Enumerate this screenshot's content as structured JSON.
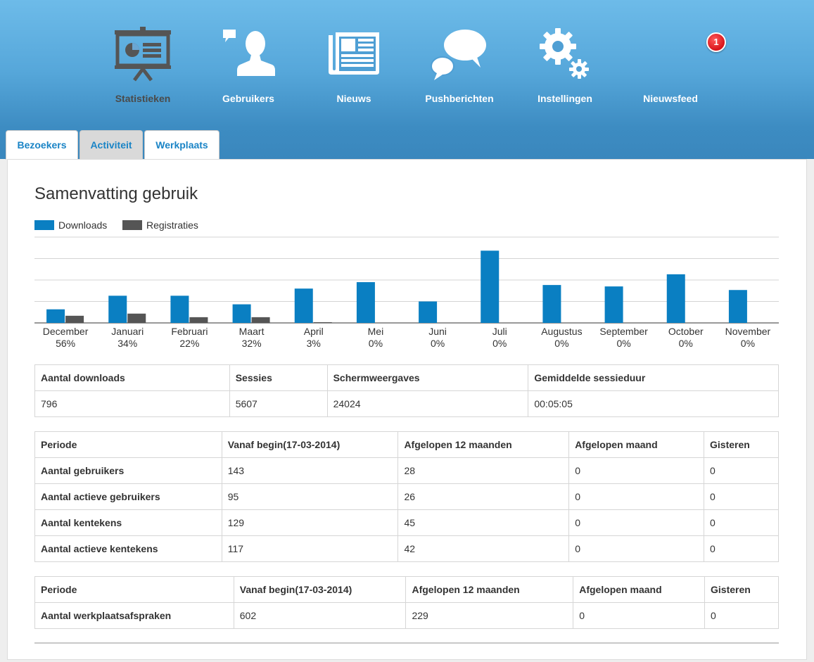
{
  "nav": {
    "items": [
      {
        "label": "Statistieken",
        "icon": "presentation-chart-icon"
      },
      {
        "label": "Gebruikers",
        "icon": "user-icon"
      },
      {
        "label": "Nieuws",
        "icon": "newspaper-icon"
      },
      {
        "label": "Pushberichten",
        "icon": "chat-bubbles-icon"
      },
      {
        "label": "Instellingen",
        "icon": "gear-icon"
      },
      {
        "label": "Nieuwsfeed",
        "icon": "feed-icon"
      }
    ],
    "active": "Statistieken",
    "badge": "1"
  },
  "tabs": [
    {
      "label": "Bezoekers"
    },
    {
      "label": "Activiteit"
    },
    {
      "label": "Werkplaats"
    }
  ],
  "active_tab": "Activiteit",
  "page": {
    "title": "Samenvatting gebruik"
  },
  "colors": {
    "downloads": "#0a7fc2",
    "registraties": "#555555",
    "nav_active_text": "#4a4a4a",
    "tab_text": "#1a84c6"
  },
  "chart_data": {
    "type": "bar",
    "title": "Samenvatting gebruik",
    "categories": [
      "December",
      "Januari",
      "Februari",
      "Maart",
      "April",
      "Mei",
      "Juni",
      "Juli",
      "Augustus",
      "September",
      "October",
      "November"
    ],
    "category_percent": [
      "56%",
      "34%",
      "22%",
      "32%",
      "3%",
      "0%",
      "0%",
      "0%",
      "0%",
      "0%",
      "0%",
      "0%"
    ],
    "series": [
      {
        "name": "Downloads",
        "values": [
          19,
          38,
          38,
          26,
          48,
          57,
          30,
          101,
          53,
          51,
          68,
          46
        ]
      },
      {
        "name": "Registraties",
        "values": [
          10,
          13,
          8,
          8,
          1,
          0,
          0,
          0,
          0,
          0,
          0,
          0
        ]
      }
    ],
    "ylim": [
      0,
      120
    ],
    "grid": true,
    "legend": "top-left"
  },
  "summary_table": {
    "headers": [
      "Aantal downloads",
      "Sessies",
      "Schermweergaves",
      "Gemiddelde sessieduur"
    ],
    "values": [
      "796",
      "5607",
      "24024",
      "00:05:05"
    ]
  },
  "users_table": {
    "headers": [
      "Periode",
      "Vanaf begin(17-03-2014)",
      "Afgelopen 12 maanden",
      "Afgelopen maand",
      "Gisteren"
    ],
    "rows": [
      [
        "Aantal gebruikers",
        "143",
        "28",
        "0",
        "0"
      ],
      [
        "Aantal actieve gebruikers",
        "95",
        "26",
        "0",
        "0"
      ],
      [
        "Aantal kentekens",
        "129",
        "45",
        "0",
        "0"
      ],
      [
        "Aantal actieve kentekens",
        "117",
        "42",
        "0",
        "0"
      ]
    ]
  },
  "workshop_table": {
    "headers": [
      "Periode",
      "Vanaf begin(17-03-2014)",
      "Afgelopen 12 maanden",
      "Afgelopen maand",
      "Gisteren"
    ],
    "rows": [
      [
        "Aantal werkplaatsafspraken",
        "602",
        "229",
        "0",
        "0"
      ]
    ]
  }
}
